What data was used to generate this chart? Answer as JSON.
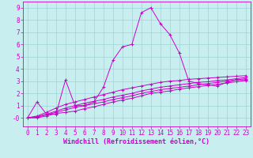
{
  "xlabel": "Windchill (Refroidissement éolien,°C)",
  "background_color": "#c8eef0",
  "line_color": "#cc00cc",
  "grid_color": "#9dd4d8",
  "xlim": [
    -0.5,
    23.5
  ],
  "ylim": [
    -0.7,
    9.5
  ],
  "yticks": [
    0,
    1,
    2,
    3,
    4,
    5,
    6,
    7,
    8,
    9
  ],
  "xticks": [
    0,
    1,
    2,
    3,
    4,
    5,
    6,
    7,
    8,
    9,
    10,
    11,
    12,
    13,
    14,
    15,
    16,
    17,
    18,
    19,
    20,
    21,
    22,
    23
  ],
  "ytick_labels": [
    "-0",
    "1",
    "2",
    "3",
    "4",
    "5",
    "6",
    "7",
    "8",
    "9"
  ],
  "series": [
    [
      0.0,
      1.3,
      0.3,
      0.3,
      3.1,
      1.0,
      1.0,
      1.3,
      2.5,
      4.7,
      5.8,
      6.0,
      8.6,
      9.0,
      7.7,
      6.8,
      5.3,
      3.0,
      2.8,
      2.7,
      2.6,
      2.9,
      3.1,
      3.1
    ],
    [
      0.0,
      0.0,
      0.15,
      0.35,
      0.45,
      0.55,
      0.75,
      0.9,
      1.1,
      1.3,
      1.45,
      1.6,
      1.8,
      2.0,
      2.1,
      2.2,
      2.35,
      2.45,
      2.55,
      2.65,
      2.75,
      2.85,
      2.95,
      3.05
    ],
    [
      0.0,
      0.05,
      0.25,
      0.45,
      0.65,
      0.85,
      1.0,
      1.15,
      1.3,
      1.5,
      1.65,
      1.8,
      2.0,
      2.15,
      2.3,
      2.4,
      2.5,
      2.6,
      2.7,
      2.8,
      2.9,
      3.0,
      3.1,
      3.2
    ],
    [
      0.0,
      0.1,
      0.3,
      0.55,
      0.8,
      1.0,
      1.2,
      1.35,
      1.5,
      1.7,
      1.85,
      2.0,
      2.2,
      2.35,
      2.5,
      2.6,
      2.7,
      2.8,
      2.9,
      2.95,
      3.05,
      3.1,
      3.2,
      3.3
    ],
    [
      0.0,
      0.15,
      0.45,
      0.8,
      1.1,
      1.3,
      1.5,
      1.7,
      1.9,
      2.1,
      2.3,
      2.45,
      2.6,
      2.75,
      2.9,
      3.0,
      3.05,
      3.15,
      3.2,
      3.25,
      3.3,
      3.35,
      3.4,
      3.45
    ]
  ],
  "xlabel_fontsize": 6.0,
  "tick_fontsize": 5.5,
  "marker": "+",
  "markersize": 3,
  "linewidth": 0.7,
  "markeredgewidth": 0.7
}
